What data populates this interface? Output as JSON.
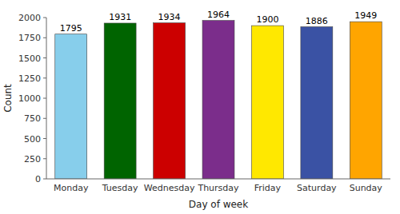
{
  "chart_data": {
    "type": "bar",
    "categories": [
      "Monday",
      "Tuesday",
      "Wednesday",
      "Thursday",
      "Friday",
      "Saturday",
      "Sunday"
    ],
    "values": [
      1795,
      1931,
      1934,
      1964,
      1900,
      1886,
      1949
    ],
    "colors": [
      "#87CEEB",
      "#006400",
      "#CC0000",
      "#7B2D8B",
      "#FFE800",
      "#3A52A4",
      "#FFA500"
    ],
    "xlabel": "Day of week",
    "ylabel": "Count",
    "ylim": [
      0,
      2000
    ],
    "yticks": [
      0,
      250,
      500,
      750,
      1000,
      1250,
      1500,
      1750,
      2000
    ],
    "data_labels": true,
    "grid": false
  }
}
